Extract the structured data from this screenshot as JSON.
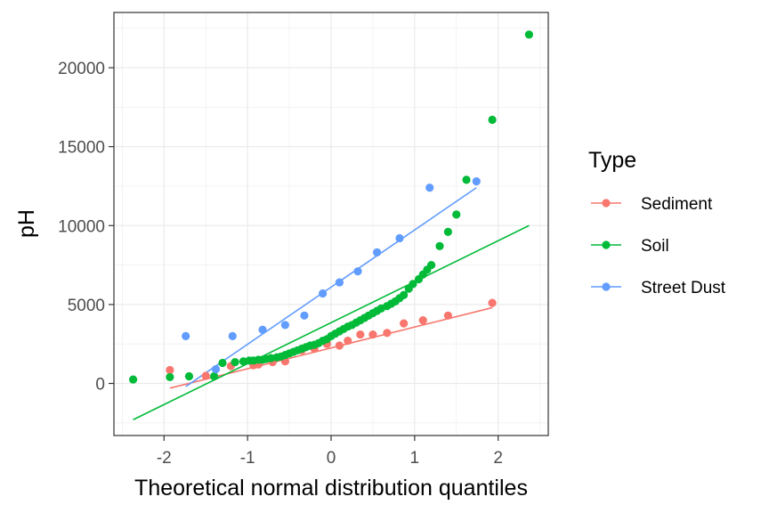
{
  "chart_data": {
    "type": "scatter",
    "title": "",
    "xlabel": "Theoretical normal distribution quantiles",
    "ylabel": "pH",
    "xlim": [
      -2.6,
      2.6
    ],
    "ylim": [
      -3300,
      23500
    ],
    "x_ticks": [
      -2,
      -1,
      0,
      1,
      2
    ],
    "x_tick_labels": [
      "-2",
      "-1",
      "0",
      "1",
      "2"
    ],
    "y_ticks": [
      0,
      5000,
      10000,
      15000,
      20000
    ],
    "y_tick_labels": [
      "0",
      "5000",
      "10000",
      "15000",
      "20000"
    ],
    "grid": true,
    "legend": {
      "title": "Type",
      "position": "right"
    },
    "series": [
      {
        "name": "Sediment",
        "color": "#F8766D",
        "points": [
          [
            -1.93,
            850
          ],
          [
            -1.5,
            480
          ],
          [
            -1.2,
            1100
          ],
          [
            -0.93,
            1150
          ],
          [
            -0.87,
            1200
          ],
          [
            -0.7,
            1350
          ],
          [
            -0.55,
            1400
          ],
          [
            -0.35,
            2100
          ],
          [
            -0.2,
            2200
          ],
          [
            -0.05,
            2500
          ],
          [
            0.1,
            2400
          ],
          [
            0.2,
            2700
          ],
          [
            0.35,
            3100
          ],
          [
            0.5,
            3100
          ],
          [
            0.67,
            3200
          ],
          [
            0.87,
            3800
          ],
          [
            1.1,
            4000
          ],
          [
            1.4,
            4300
          ],
          [
            1.93,
            5100
          ]
        ],
        "fit_line": [
          [
            -1.93,
            -300
          ],
          [
            1.93,
            4800
          ]
        ]
      },
      {
        "name": "Soil",
        "color": "#00BA38",
        "points": [
          [
            -2.37,
            250
          ],
          [
            -1.93,
            400
          ],
          [
            -1.7,
            450
          ],
          [
            -1.4,
            450
          ],
          [
            -1.3,
            1300
          ],
          [
            -1.15,
            1350
          ],
          [
            -1.05,
            1400
          ],
          [
            -0.98,
            1450
          ],
          [
            -0.93,
            1450
          ],
          [
            -0.87,
            1500
          ],
          [
            -0.82,
            1500
          ],
          [
            -0.78,
            1550
          ],
          [
            -0.72,
            1600
          ],
          [
            -0.65,
            1650
          ],
          [
            -0.6,
            1700
          ],
          [
            -0.55,
            1800
          ],
          [
            -0.5,
            1900
          ],
          [
            -0.45,
            2000
          ],
          [
            -0.4,
            2100
          ],
          [
            -0.35,
            2200
          ],
          [
            -0.3,
            2300
          ],
          [
            -0.25,
            2400
          ],
          [
            -0.2,
            2450
          ],
          [
            -0.15,
            2550
          ],
          [
            -0.1,
            2700
          ],
          [
            -0.05,
            2800
          ],
          [
            0.0,
            3000
          ],
          [
            0.05,
            3150
          ],
          [
            0.1,
            3300
          ],
          [
            0.15,
            3450
          ],
          [
            0.2,
            3600
          ],
          [
            0.25,
            3700
          ],
          [
            0.3,
            3850
          ],
          [
            0.35,
            4000
          ],
          [
            0.4,
            4150
          ],
          [
            0.45,
            4300
          ],
          [
            0.5,
            4450
          ],
          [
            0.55,
            4600
          ],
          [
            0.6,
            4750
          ],
          [
            0.67,
            4900
          ],
          [
            0.72,
            5050
          ],
          [
            0.77,
            5200
          ],
          [
            0.82,
            5400
          ],
          [
            0.87,
            5600
          ],
          [
            0.93,
            6000
          ],
          [
            0.98,
            6300
          ],
          [
            1.05,
            6600
          ],
          [
            1.1,
            6900
          ],
          [
            1.15,
            7200
          ],
          [
            1.2,
            7500
          ],
          [
            1.3,
            8700
          ],
          [
            1.4,
            9600
          ],
          [
            1.5,
            10700
          ],
          [
            1.62,
            12900
          ],
          [
            1.93,
            16700
          ],
          [
            2.37,
            22100
          ]
        ],
        "fit_line": [
          [
            -2.37,
            -2300
          ],
          [
            2.37,
            10000
          ]
        ]
      },
      {
        "name": "Street Dust",
        "color": "#619CFF",
        "points": [
          [
            -1.74,
            3000
          ],
          [
            -1.38,
            900
          ],
          [
            -1.18,
            3000
          ],
          [
            -0.82,
            3400
          ],
          [
            -0.55,
            3700
          ],
          [
            -0.32,
            4300
          ],
          [
            -0.1,
            5700
          ],
          [
            0.1,
            6400
          ],
          [
            0.32,
            7100
          ],
          [
            0.55,
            8300
          ],
          [
            0.82,
            9200
          ],
          [
            1.18,
            12400
          ],
          [
            1.74,
            12800
          ]
        ],
        "fit_line": [
          [
            -1.74,
            -200
          ],
          [
            1.74,
            12400
          ]
        ]
      }
    ]
  }
}
